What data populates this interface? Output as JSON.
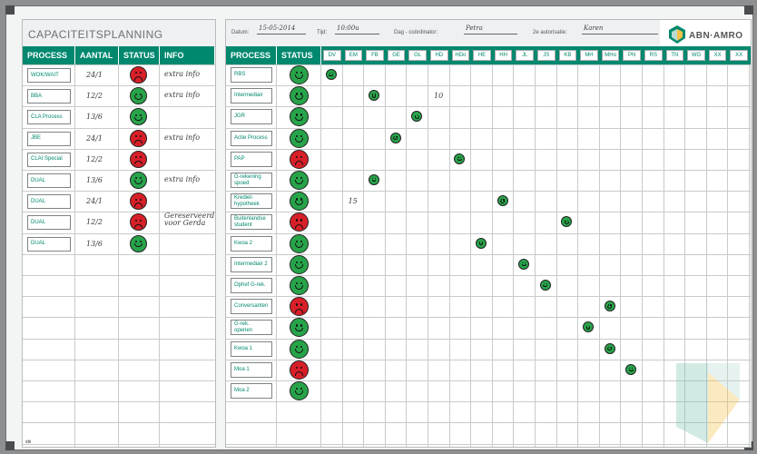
{
  "board": {
    "title": "CAPACITEITSPLANNING",
    "brand": "ABN·AMRO",
    "footer_logo": "sbi"
  },
  "topbar": {
    "datum_label": "Datum:",
    "datum_value": "15-05-2014",
    "tijd_label": "Tijd:",
    "tijd_value": "10:00u",
    "coordinator_label": "Dag - coördinator:",
    "coordinator_value": "Petra",
    "autorisatie_label": "2e autorisatie:",
    "autorisatie_value": "Karen"
  },
  "left_table": {
    "headers": [
      "PROCESS",
      "AANTAL",
      "STATUS",
      "INFO"
    ],
    "rows": [
      {
        "process": "WOK/WAIT",
        "aantal": "24/1",
        "status": "red",
        "info": "extra info"
      },
      {
        "process": "BBA",
        "aantal": "12/2",
        "status": "green",
        "info": "extra info"
      },
      {
        "process": "CLA Process",
        "aantal": "13/6",
        "status": "green",
        "info": ""
      },
      {
        "process": "JBE",
        "aantal": "24/1",
        "status": "red",
        "info": "extra info"
      },
      {
        "process": "CLAI Special",
        "aantal": "12/2",
        "status": "red",
        "info": ""
      },
      {
        "process": "DUAL",
        "aantal": "13/6",
        "status": "green",
        "info": "extra info"
      },
      {
        "process": "DUAL",
        "aantal": "24/1",
        "status": "red",
        "info": ""
      },
      {
        "process": "DUAL",
        "aantal": "12/2",
        "status": "red",
        "info": "Gereserveerd voor Gerda"
      },
      {
        "process": "DUAL",
        "aantal": "13/6",
        "status": "green",
        "info": ""
      }
    ]
  },
  "right_table": {
    "headers": [
      "PROCESS",
      "STATUS"
    ],
    "days": [
      "DV",
      "EM",
      "FB",
      "GE",
      "GL",
      "HD",
      "HDo",
      "HE",
      "HH",
      "JL",
      "JS",
      "KB",
      "MH",
      "MHo",
      "PN",
      "RS",
      "TN",
      "WG",
      "XX",
      "XX"
    ],
    "rows": [
      {
        "process": "RBS",
        "status": "green",
        "mark_col": 0,
        "note": "",
        "note_col": -1
      },
      {
        "process": "Intermediair",
        "status": "green",
        "mark_col": 2,
        "note": "10",
        "note_col": 5
      },
      {
        "process": "JGR",
        "status": "green",
        "mark_col": 4,
        "note": "",
        "note_col": -1
      },
      {
        "process": "Actie Process",
        "status": "green",
        "mark_col": 3,
        "note": "",
        "note_col": -1
      },
      {
        "process": "PAP",
        "status": "red",
        "mark_col": 6,
        "note": "",
        "note_col": -1
      },
      {
        "process": "G-rekening spoed",
        "status": "green",
        "mark_col": 2,
        "note": "",
        "note_col": -1
      },
      {
        "process": "Krediet-hypotheek",
        "status": "green",
        "mark_col": 8,
        "note": "15",
        "note_col": 1
      },
      {
        "process": "Buitenlandse student",
        "status": "red",
        "mark_col": 11,
        "note": "",
        "note_col": -1
      },
      {
        "process": "Kwoa 2",
        "status": "green",
        "mark_col": 7,
        "note": "",
        "note_col": -1
      },
      {
        "process": "Intermediair 2",
        "status": "green",
        "mark_col": 9,
        "note": "",
        "note_col": -1
      },
      {
        "process": "Ophef G-rek.",
        "status": "green",
        "mark_col": 10,
        "note": "",
        "note_col": -1
      },
      {
        "process": "Conversanten",
        "status": "red",
        "mark_col": 13,
        "note": "",
        "note_col": -1
      },
      {
        "process": "G-rek. openen",
        "status": "green",
        "mark_col": 12,
        "note": "",
        "note_col": -1
      },
      {
        "process": "Kwoa 1",
        "status": "green",
        "mark_col": 13,
        "note": "",
        "note_col": -1
      },
      {
        "process": "Moa 1",
        "status": "red",
        "mark_col": 14,
        "note": "",
        "note_col": -1
      },
      {
        "process": "Moa 2",
        "status": "green",
        "mark_col": -1,
        "note": "",
        "note_col": -1
      }
    ]
  },
  "colors": {
    "accent": "#00886f",
    "smile_green": "#27a34a",
    "smile_red": "#d71f28"
  }
}
